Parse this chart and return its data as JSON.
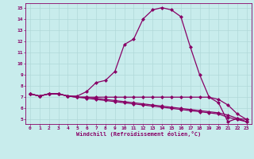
{
  "xlabel": "Windchill (Refroidissement éolien,°C)",
  "background_color": "#c8ecec",
  "grid_color": "#b0d8d8",
  "line_color": "#880066",
  "x_ticks": [
    0,
    1,
    2,
    3,
    4,
    5,
    6,
    7,
    8,
    9,
    10,
    11,
    12,
    13,
    14,
    15,
    16,
    17,
    18,
    19,
    20,
    21,
    22,
    23
  ],
  "y_ticks": [
    5,
    6,
    7,
    8,
    9,
    10,
    11,
    12,
    13,
    14,
    15
  ],
  "ylim": [
    4.6,
    15.4
  ],
  "xlim": [
    -0.5,
    23.5
  ],
  "line1": [
    7.3,
    7.1,
    7.3,
    7.3,
    7.1,
    7.1,
    7.5,
    8.3,
    8.5,
    9.3,
    11.7,
    12.2,
    14.0,
    14.8,
    15.0,
    14.8,
    14.2,
    11.5,
    9.0,
    7.0,
    6.5,
    4.8,
    5.1,
    5.0
  ],
  "line2": [
    7.3,
    7.1,
    7.3,
    7.3,
    7.1,
    7.0,
    7.0,
    7.0,
    7.0,
    7.0,
    7.0,
    7.0,
    7.0,
    7.0,
    7.0,
    7.0,
    7.0,
    7.0,
    7.0,
    7.0,
    6.8,
    6.3,
    5.5,
    5.0
  ],
  "line3": [
    7.3,
    7.1,
    7.3,
    7.3,
    7.1,
    7.0,
    7.0,
    6.9,
    6.8,
    6.7,
    6.6,
    6.5,
    6.4,
    6.3,
    6.2,
    6.1,
    6.0,
    5.9,
    5.8,
    5.7,
    5.6,
    5.4,
    5.1,
    4.8
  ],
  "line4": [
    7.3,
    7.1,
    7.3,
    7.3,
    7.1,
    7.0,
    6.9,
    6.8,
    6.7,
    6.6,
    6.5,
    6.4,
    6.3,
    6.2,
    6.1,
    6.0,
    5.9,
    5.8,
    5.7,
    5.6,
    5.5,
    5.2,
    5.0,
    4.8
  ],
  "markersize": 2.5,
  "linewidth": 0.9
}
